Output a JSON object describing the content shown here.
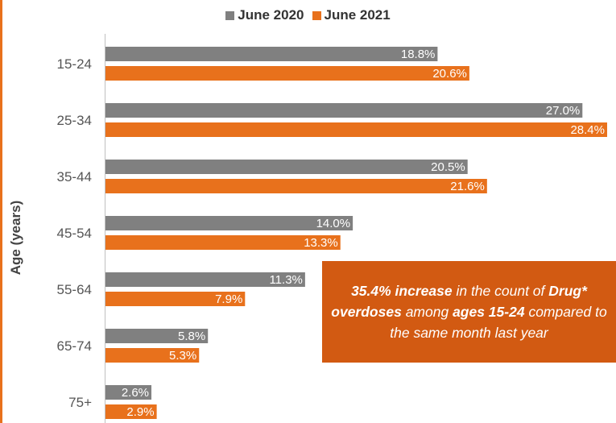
{
  "colors": {
    "june2020": "#808080",
    "june2021": "#e8711c",
    "callout_bg": "#d25a12",
    "accent_stripe": "#e8711c"
  },
  "callout": {
    "segments": [
      {
        "text": "35.4% increase",
        "bold": true
      },
      {
        "text": " in the count of ",
        "bold": false
      },
      {
        "text": "Drug* overdoses",
        "bold": true
      },
      {
        "text": " among ",
        "bold": false
      },
      {
        "text": "ages 15-24",
        "bold": true
      },
      {
        "text": " compared to the same month last year",
        "bold": false
      }
    ]
  },
  "chart_data": {
    "type": "bar",
    "orientation": "horizontal",
    "title": "",
    "xlabel": "",
    "ylabel": "Age (years)",
    "categories": [
      "15-24",
      "25-34",
      "35-44",
      "45-54",
      "55-64",
      "65-74",
      "75+"
    ],
    "series": [
      {
        "name": "June 2020",
        "values": [
          18.8,
          27.0,
          20.5,
          14.0,
          11.3,
          5.8,
          2.6
        ],
        "labels": [
          "18.8%",
          "27.0%",
          "20.5%",
          "14.0%",
          "11.3%",
          "5.8%",
          "2.6%"
        ]
      },
      {
        "name": "June 2021",
        "values": [
          20.6,
          28.4,
          21.6,
          13.3,
          7.9,
          5.3,
          2.9
        ],
        "labels": [
          "20.6%",
          "28.4%",
          "21.6%",
          "13.3%",
          "7.9%",
          "5.3%",
          "2.9%"
        ]
      }
    ],
    "xlim": [
      0,
      28.4
    ],
    "grid": false,
    "legend": "top"
  }
}
